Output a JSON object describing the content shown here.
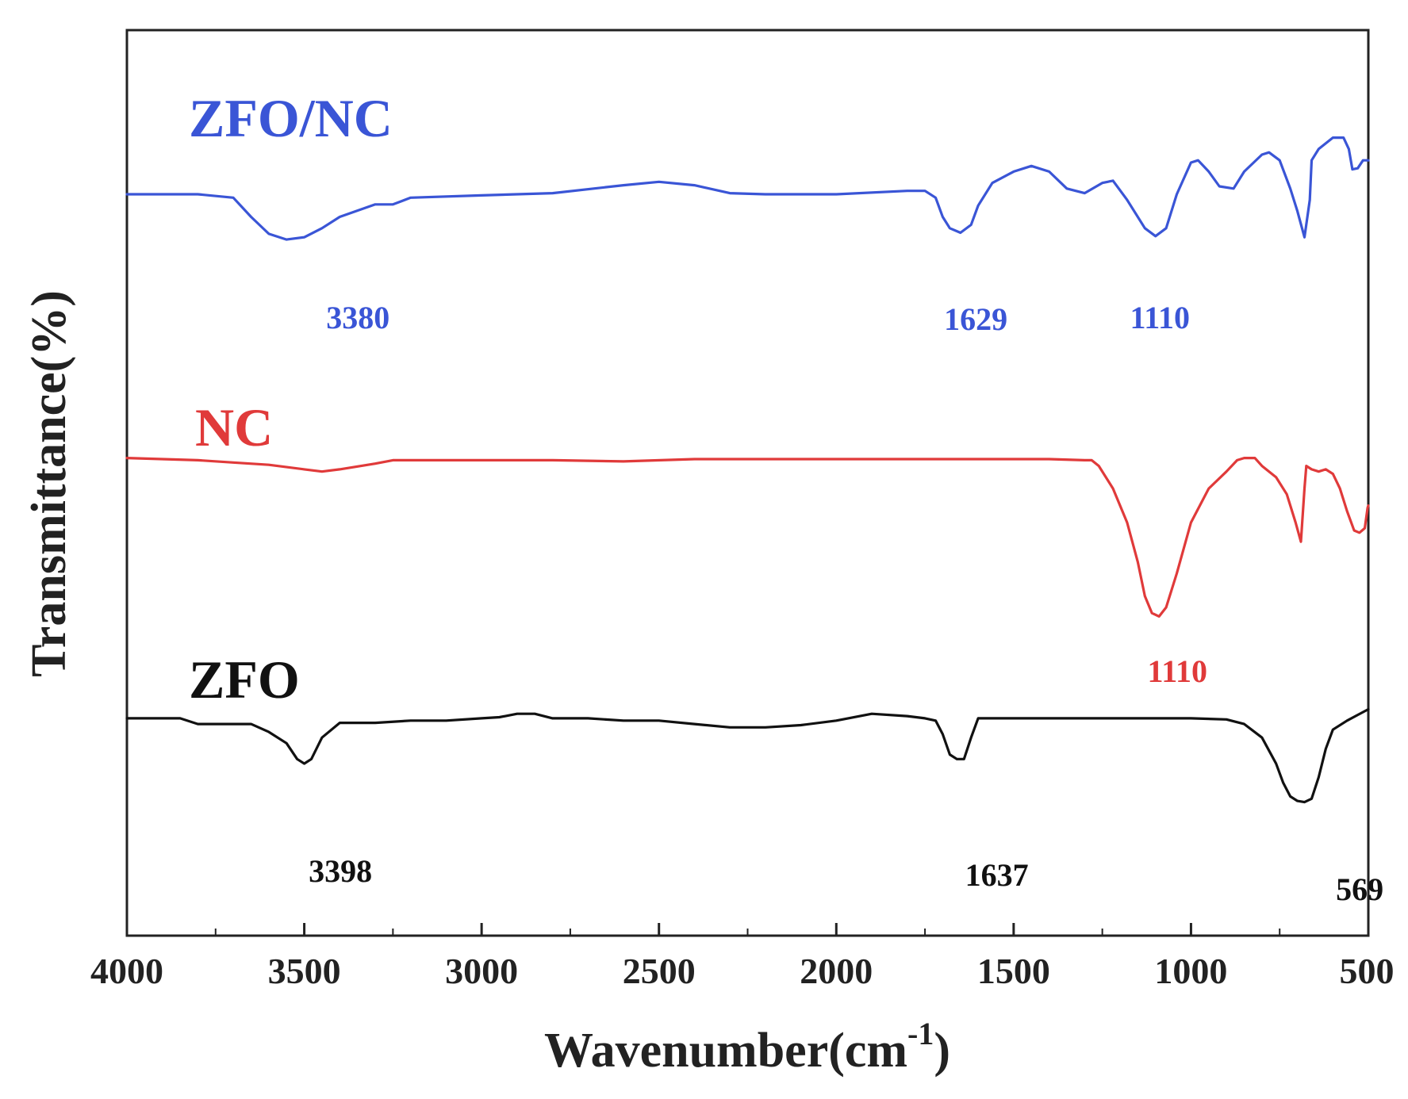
{
  "chart_data": {
    "type": "line",
    "title": "",
    "xlabel": "Wavenumber(cm",
    "xlabel_superscript": "-1",
    "xlabel_suffix": ")",
    "ylabel": "Transmittance(%)",
    "xlim": [
      4000,
      500
    ],
    "x_ticks": [
      4000,
      3500,
      3000,
      2500,
      2000,
      1500,
      1000,
      500
    ],
    "x_tick_labels": [
      "4000",
      "3500",
      "3000",
      "2500",
      "2000",
      "1500",
      "1000",
      "500"
    ],
    "y_ticks_shown": false,
    "grid": false,
    "series": [
      {
        "name": "ZFO/NC",
        "color": "#3a55d6",
        "peaks": [
          {
            "x": 3380,
            "label": "3380"
          },
          {
            "x": 1629,
            "label": "1629"
          },
          {
            "x": 1110,
            "label": "1110"
          }
        ],
        "points": [
          [
            4000,
            85.5
          ],
          [
            3800,
            85.5
          ],
          [
            3700,
            85.2
          ],
          [
            3650,
            83.5
          ],
          [
            3600,
            82
          ],
          [
            3550,
            81.5
          ],
          [
            3500,
            81.7
          ],
          [
            3450,
            82.5
          ],
          [
            3400,
            83.5
          ],
          [
            3300,
            84.6
          ],
          [
            3250,
            84.6
          ],
          [
            3200,
            85.2
          ],
          [
            3000,
            85.4
          ],
          [
            2800,
            85.6
          ],
          [
            2600,
            86.3
          ],
          [
            2500,
            86.6
          ],
          [
            2400,
            86.3
          ],
          [
            2300,
            85.6
          ],
          [
            2200,
            85.5
          ],
          [
            2000,
            85.5
          ],
          [
            1800,
            85.8
          ],
          [
            1750,
            85.8
          ],
          [
            1720,
            85.2
          ],
          [
            1700,
            83.5
          ],
          [
            1680,
            82.5
          ],
          [
            1650,
            82.1
          ],
          [
            1620,
            82.8
          ],
          [
            1600,
            84.5
          ],
          [
            1560,
            86.5
          ],
          [
            1500,
            87.5
          ],
          [
            1450,
            88.0
          ],
          [
            1400,
            87.5
          ],
          [
            1350,
            86.0
          ],
          [
            1300,
            85.6
          ],
          [
            1250,
            86.5
          ],
          [
            1220,
            86.7
          ],
          [
            1180,
            85
          ],
          [
            1130,
            82.5
          ],
          [
            1100,
            81.8
          ],
          [
            1070,
            82.5
          ],
          [
            1040,
            85.5
          ],
          [
            1000,
            88.3
          ],
          [
            980,
            88.5
          ],
          [
            950,
            87.5
          ],
          [
            920,
            86.2
          ],
          [
            880,
            86.0
          ],
          [
            850,
            87.5
          ],
          [
            800,
            89.0
          ],
          [
            780,
            89.2
          ],
          [
            750,
            88.5
          ],
          [
            720,
            86.0
          ],
          [
            700,
            84.0
          ],
          [
            680,
            81.7
          ],
          [
            665,
            85
          ],
          [
            660,
            88.5
          ],
          [
            640,
            89.5
          ],
          [
            600,
            90.5
          ],
          [
            570,
            90.5
          ],
          [
            555,
            89.5
          ],
          [
            545,
            87.7
          ],
          [
            530,
            87.8
          ],
          [
            515,
            88.5
          ],
          [
            500,
            88.5
          ]
        ]
      },
      {
        "name": "NC",
        "color": "#e03a3a",
        "peaks": [
          {
            "x": 1110,
            "label": "1110"
          }
        ],
        "points": [
          [
            4000,
            62.2
          ],
          [
            3800,
            62.0
          ],
          [
            3700,
            61.8
          ],
          [
            3600,
            61.6
          ],
          [
            3500,
            61.2
          ],
          [
            3450,
            61.0
          ],
          [
            3400,
            61.2
          ],
          [
            3300,
            61.7
          ],
          [
            3250,
            62.0
          ],
          [
            3000,
            62.0
          ],
          [
            2800,
            62.0
          ],
          [
            2600,
            61.9
          ],
          [
            2400,
            62.1
          ],
          [
            2200,
            62.1
          ],
          [
            2000,
            62.1
          ],
          [
            1800,
            62.1
          ],
          [
            1600,
            62.1
          ],
          [
            1400,
            62.1
          ],
          [
            1300,
            62.0
          ],
          [
            1280,
            62.0
          ],
          [
            1260,
            61.5
          ],
          [
            1220,
            59.5
          ],
          [
            1180,
            56.5
          ],
          [
            1150,
            53.0
          ],
          [
            1130,
            50.0
          ],
          [
            1110,
            48.5
          ],
          [
            1090,
            48.2
          ],
          [
            1070,
            49.0
          ],
          [
            1040,
            52.0
          ],
          [
            1000,
            56.5
          ],
          [
            950,
            59.5
          ],
          [
            900,
            61.0
          ],
          [
            870,
            62.0
          ],
          [
            850,
            62.2
          ],
          [
            820,
            62.2
          ],
          [
            800,
            61.5
          ],
          [
            760,
            60.5
          ],
          [
            730,
            59.0
          ],
          [
            705,
            56.5
          ],
          [
            690,
            54.8
          ],
          [
            680,
            59.5
          ],
          [
            675,
            61.5
          ],
          [
            660,
            61.2
          ],
          [
            640,
            61.0
          ],
          [
            620,
            61.2
          ],
          [
            600,
            60.8
          ],
          [
            580,
            59.5
          ],
          [
            560,
            57.5
          ],
          [
            540,
            55.8
          ],
          [
            525,
            55.6
          ],
          [
            510,
            56.0
          ],
          [
            502,
            57.8
          ],
          [
            500,
            58.0
          ]
        ]
      },
      {
        "name": "ZFO",
        "color": "#111111",
        "peaks": [
          {
            "x": 3398,
            "label": "3398"
          },
          {
            "x": 1637,
            "label": "1637"
          },
          {
            "x": 569,
            "label": "569"
          }
        ],
        "points": [
          [
            4000,
            39.2
          ],
          [
            3850,
            39.2
          ],
          [
            3800,
            38.7
          ],
          [
            3650,
            38.7
          ],
          [
            3600,
            38.0
          ],
          [
            3550,
            37.0
          ],
          [
            3520,
            35.6
          ],
          [
            3500,
            35.2
          ],
          [
            3480,
            35.6
          ],
          [
            3450,
            37.5
          ],
          [
            3400,
            38.8
          ],
          [
            3300,
            38.8
          ],
          [
            3200,
            39.0
          ],
          [
            3100,
            39.0
          ],
          [
            3000,
            39.2
          ],
          [
            2950,
            39.3
          ],
          [
            2900,
            39.6
          ],
          [
            2850,
            39.6
          ],
          [
            2800,
            39.2
          ],
          [
            2700,
            39.2
          ],
          [
            2600,
            39.0
          ],
          [
            2500,
            39.0
          ],
          [
            2400,
            38.7
          ],
          [
            2300,
            38.4
          ],
          [
            2200,
            38.4
          ],
          [
            2100,
            38.6
          ],
          [
            2000,
            39.0
          ],
          [
            1900,
            39.6
          ],
          [
            1800,
            39.4
          ],
          [
            1750,
            39.2
          ],
          [
            1720,
            39.0
          ],
          [
            1700,
            37.8
          ],
          [
            1680,
            36.0
          ],
          [
            1660,
            35.6
          ],
          [
            1640,
            35.6
          ],
          [
            1620,
            37.5
          ],
          [
            1600,
            39.2
          ],
          [
            1400,
            39.2
          ],
          [
            1200,
            39.2
          ],
          [
            1000,
            39.2
          ],
          [
            900,
            39.1
          ],
          [
            850,
            38.7
          ],
          [
            800,
            37.5
          ],
          [
            760,
            35.2
          ],
          [
            740,
            33.5
          ],
          [
            720,
            32.3
          ],
          [
            700,
            31.9
          ],
          [
            680,
            31.8
          ],
          [
            660,
            32.1
          ],
          [
            640,
            34.0
          ],
          [
            620,
            36.5
          ],
          [
            600,
            38.2
          ],
          [
            560,
            39.0
          ],
          [
            530,
            39.5
          ],
          [
            500,
            40.0
          ]
        ]
      }
    ]
  }
}
